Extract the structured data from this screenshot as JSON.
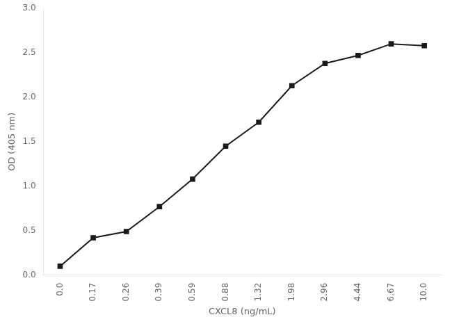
{
  "chart_data": {
    "type": "line",
    "xlabel": "CXCL8 (ng/mL)",
    "ylabel": "OD (405 nm)",
    "categories": [
      "0.0",
      "0.17",
      "0.26",
      "0.39",
      "0.59",
      "0.88",
      "1.32",
      "1.98",
      "2.96",
      "4.44",
      "6.67",
      "10.0"
    ],
    "values": [
      0.1,
      0.42,
      0.49,
      0.77,
      1.08,
      1.45,
      1.72,
      2.13,
      2.38,
      2.47,
      2.6,
      2.58
    ],
    "color": "#1a1a1a",
    "marker": "square",
    "ylim": [
      0.0,
      3.0
    ],
    "yticks": [
      {
        "value": 0.0,
        "label": "0.0"
      },
      0.5,
      {
        "value": 1.0,
        "label": "1.0"
      },
      1.5,
      {
        "value": 2.0,
        "label": "2.0"
      },
      2.5,
      {
        "value": 3.0,
        "label": "3.0"
      }
    ],
    "grid": false
  }
}
